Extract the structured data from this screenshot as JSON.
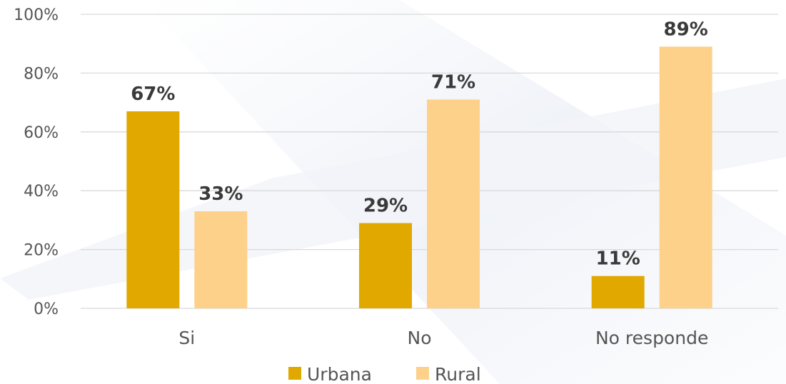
{
  "chart_data": {
    "type": "bar",
    "categories": [
      "Si",
      "No",
      "No responde"
    ],
    "series": [
      {
        "name": "Urbana",
        "values": [
          67,
          29,
          11
        ],
        "color": "#E1A800"
      },
      {
        "name": "Rural",
        "values": [
          33,
          71,
          89
        ],
        "color": "#FED18A"
      }
    ],
    "data_labels": [
      [
        "67%",
        "29%",
        "11%"
      ],
      [
        "33%",
        "71%",
        "89%"
      ]
    ],
    "y_ticks": [
      "0%",
      "20%",
      "40%",
      "60%",
      "80%",
      "100%"
    ],
    "ylim": [
      0,
      100
    ],
    "grid": true,
    "legend_position": "bottom",
    "colors": {
      "grid": "#D9D9D9",
      "axis_text": "#555555",
      "label_text": "#3a3a3a"
    }
  }
}
